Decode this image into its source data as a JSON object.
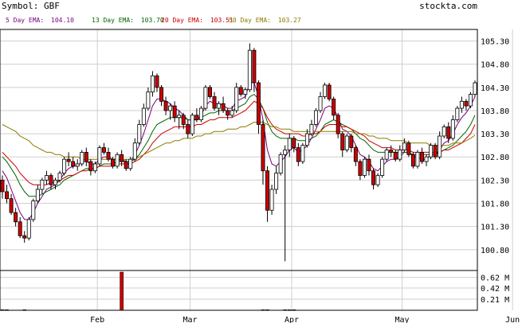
{
  "header": {
    "symbol_label": "Symbol: GBF",
    "site": "stockta.com"
  },
  "legend": [
    {
      "label": "5 Day EMA:",
      "value": "104.10",
      "color": "#7a007a"
    },
    {
      "label": "13 Day EMA:",
      "value": "103.70",
      "color": "#006600"
    },
    {
      "label": "20 Day EMA:",
      "value": "103.51",
      "color": "#cc0000"
    },
    {
      "label": "50 Day EMA:",
      "value": "103.27",
      "color": "#8b7d00"
    }
  ],
  "colors": {
    "up": "#ffffff",
    "down": "#cc0000",
    "grid": "#cfcfcf",
    "frame": "#000000",
    "ema5": "#7a007a",
    "ema13": "#006600",
    "ema20": "#cc0000",
    "ema50": "#8b7d00",
    "volume": "#cc0000"
  },
  "chart_data": {
    "type": "candlestick",
    "title": "",
    "y_axis_ticks": [
      "105.30",
      "104.80",
      "104.30",
      "103.80",
      "103.30",
      "102.80",
      "102.30",
      "101.80",
      "101.30",
      "100.80"
    ],
    "ylim": [
      100.35,
      105.55
    ],
    "x_axis_labels": [
      "Feb",
      "Mar",
      "Apr",
      "May",
      "Jun"
    ],
    "month_start_index": [
      22,
      43,
      66,
      91,
      116
    ],
    "ohlc": [
      [
        102.3,
        102.4,
        101.9,
        102.05
      ],
      [
        102.05,
        102.2,
        101.8,
        101.9
      ],
      [
        101.9,
        102.0,
        101.55,
        101.6
      ],
      [
        101.6,
        101.7,
        101.3,
        101.4
      ],
      [
        101.4,
        101.5,
        101.05,
        101.1
      ],
      [
        101.1,
        101.2,
        100.95,
        101.05
      ],
      [
        101.05,
        101.5,
        101.0,
        101.45
      ],
      [
        101.45,
        101.9,
        101.4,
        101.85
      ],
      [
        101.85,
        102.2,
        101.8,
        102.1
      ],
      [
        102.1,
        102.35,
        102.0,
        102.3
      ],
      [
        102.3,
        102.5,
        102.2,
        102.4
      ],
      [
        102.4,
        102.45,
        102.1,
        102.2
      ],
      [
        102.2,
        102.35,
        102.1,
        102.3
      ],
      [
        102.3,
        102.5,
        102.25,
        102.45
      ],
      [
        102.45,
        102.8,
        102.4,
        102.75
      ],
      [
        102.75,
        102.9,
        102.6,
        102.7
      ],
      [
        102.7,
        102.8,
        102.55,
        102.6
      ],
      [
        102.6,
        102.75,
        102.5,
        102.65
      ],
      [
        102.65,
        102.95,
        102.6,
        102.9
      ],
      [
        102.9,
        103.0,
        102.6,
        102.7
      ],
      [
        102.7,
        102.75,
        102.4,
        102.5
      ],
      [
        102.5,
        102.7,
        102.45,
        102.65
      ],
      [
        102.65,
        103.05,
        102.6,
        103.0
      ],
      [
        103.0,
        103.1,
        102.85,
        102.9
      ],
      [
        102.9,
        103.0,
        102.7,
        102.75
      ],
      [
        102.75,
        102.8,
        102.55,
        102.6
      ],
      [
        102.6,
        102.9,
        102.55,
        102.85
      ],
      [
        102.85,
        102.95,
        102.6,
        102.7
      ],
      [
        102.7,
        102.75,
        102.5,
        102.55
      ],
      [
        102.55,
        102.8,
        102.5,
        102.75
      ],
      [
        102.75,
        103.2,
        102.7,
        103.1
      ],
      [
        103.1,
        103.6,
        103.05,
        103.5
      ],
      [
        103.5,
        103.95,
        103.45,
        103.85
      ],
      [
        103.85,
        104.3,
        103.8,
        104.2
      ],
      [
        104.2,
        104.65,
        104.1,
        104.55
      ],
      [
        104.55,
        104.6,
        104.2,
        104.3
      ],
      [
        104.3,
        104.35,
        103.9,
        104.0
      ],
      [
        104.0,
        104.1,
        103.7,
        103.8
      ],
      [
        103.8,
        103.95,
        103.6,
        103.9
      ],
      [
        103.9,
        104.0,
        103.55,
        103.65
      ],
      [
        103.65,
        103.8,
        103.4,
        103.7
      ],
      [
        103.7,
        103.75,
        103.4,
        103.5
      ],
      [
        103.5,
        103.6,
        103.2,
        103.3
      ],
      [
        103.3,
        103.75,
        103.25,
        103.7
      ],
      [
        103.7,
        103.85,
        103.55,
        103.6
      ],
      [
        103.6,
        103.9,
        103.55,
        103.85
      ],
      [
        103.85,
        104.35,
        103.8,
        104.3
      ],
      [
        104.3,
        104.35,
        104.05,
        104.1
      ],
      [
        104.1,
        104.2,
        103.8,
        103.85
      ],
      [
        103.85,
        104.0,
        103.7,
        103.95
      ],
      [
        103.95,
        104.1,
        103.75,
        103.8
      ],
      [
        103.8,
        103.85,
        103.6,
        103.7
      ],
      [
        103.7,
        103.9,
        103.65,
        103.8
      ],
      [
        103.8,
        104.4,
        103.75,
        104.3
      ],
      [
        104.3,
        104.35,
        104.1,
        104.15
      ],
      [
        104.15,
        104.3,
        104.05,
        104.25
      ],
      [
        104.25,
        105.25,
        104.2,
        105.1
      ],
      [
        105.1,
        105.15,
        104.2,
        104.4
      ],
      [
        104.4,
        104.45,
        103.3,
        103.5
      ],
      [
        103.5,
        103.6,
        102.2,
        102.5
      ],
      [
        102.5,
        102.6,
        101.4,
        101.65
      ],
      [
        101.65,
        102.2,
        101.55,
        102.1
      ],
      [
        102.1,
        102.6,
        102.0,
        102.45
      ],
      [
        102.45,
        102.9,
        102.4,
        102.85
      ],
      [
        102.85,
        103.05,
        100.55,
        102.95
      ],
      [
        102.95,
        103.3,
        102.8,
        103.2
      ],
      [
        103.2,
        103.25,
        102.9,
        103.0
      ],
      [
        103.0,
        103.1,
        102.6,
        102.7
      ],
      [
        102.7,
        103.1,
        102.65,
        103.05
      ],
      [
        103.05,
        103.4,
        103.0,
        103.3
      ],
      [
        103.3,
        103.6,
        103.25,
        103.5
      ],
      [
        103.5,
        103.85,
        103.45,
        103.8
      ],
      [
        103.8,
        104.2,
        103.75,
        104.1
      ],
      [
        104.1,
        104.4,
        104.05,
        104.35
      ],
      [
        104.35,
        104.4,
        104.0,
        104.05
      ],
      [
        104.05,
        104.1,
        103.6,
        103.7
      ],
      [
        103.7,
        103.75,
        103.2,
        103.3
      ],
      [
        103.3,
        103.35,
        102.8,
        102.95
      ],
      [
        102.95,
        103.3,
        102.9,
        103.25
      ],
      [
        103.25,
        103.3,
        102.9,
        103.0
      ],
      [
        103.0,
        103.05,
        102.6,
        102.7
      ],
      [
        102.7,
        102.75,
        102.3,
        102.4
      ],
      [
        102.4,
        102.8,
        102.35,
        102.75
      ],
      [
        102.75,
        102.85,
        102.4,
        102.5
      ],
      [
        102.5,
        102.55,
        102.1,
        102.2
      ],
      [
        102.2,
        102.45,
        102.15,
        102.4
      ],
      [
        102.4,
        102.8,
        102.35,
        102.75
      ],
      [
        102.75,
        103.0,
        102.7,
        102.95
      ],
      [
        102.95,
        103.05,
        102.8,
        102.9
      ],
      [
        102.9,
        102.95,
        102.7,
        102.75
      ],
      [
        102.75,
        103.05,
        102.7,
        102.95
      ],
      [
        102.95,
        103.2,
        102.9,
        103.1
      ],
      [
        103.1,
        103.15,
        102.8,
        102.85
      ],
      [
        102.85,
        102.9,
        102.55,
        102.6
      ],
      [
        102.6,
        102.95,
        102.55,
        102.9
      ],
      [
        102.9,
        103.0,
        102.65,
        102.7
      ],
      [
        102.7,
        102.85,
        102.6,
        102.8
      ],
      [
        102.8,
        103.1,
        102.75,
        103.05
      ],
      [
        103.05,
        103.1,
        102.75,
        102.8
      ],
      [
        102.8,
        103.35,
        102.75,
        103.25
      ],
      [
        103.25,
        103.5,
        103.2,
        103.45
      ],
      [
        103.45,
        103.55,
        103.1,
        103.2
      ],
      [
        103.2,
        103.7,
        103.15,
        103.6
      ],
      [
        103.6,
        103.9,
        103.55,
        103.85
      ],
      [
        103.85,
        104.1,
        103.75,
        104.0
      ],
      [
        104.0,
        104.05,
        103.8,
        103.9
      ],
      [
        103.9,
        104.2,
        103.85,
        104.15
      ],
      [
        104.15,
        104.45,
        104.1,
        104.4
      ]
    ],
    "ema": {
      "5 Day EMA": [
        102.5,
        102.35,
        102.1,
        101.85,
        101.6,
        101.45,
        101.45,
        101.6,
        101.8,
        101.95,
        102.1,
        102.15,
        102.2,
        102.3,
        102.45,
        102.55,
        102.6,
        102.6,
        102.7,
        102.7,
        102.65,
        102.65,
        102.75,
        102.8,
        102.8,
        102.75,
        102.75,
        102.75,
        102.7,
        102.7,
        102.85,
        103.05,
        103.3,
        103.6,
        103.9,
        104.05,
        104.05,
        104.0,
        103.95,
        103.85,
        103.8,
        103.7,
        103.6,
        103.6,
        103.6,
        103.7,
        103.9,
        104.0,
        103.95,
        103.95,
        103.9,
        103.85,
        103.85,
        104.0,
        104.05,
        104.1,
        104.4,
        104.4,
        104.1,
        103.6,
        102.95,
        102.65,
        102.6,
        102.7,
        102.8,
        102.95,
        103.0,
        102.9,
        102.95,
        103.05,
        103.2,
        103.4,
        103.6,
        103.85,
        103.9,
        103.85,
        103.65,
        103.4,
        103.35,
        103.25,
        103.05,
        102.85,
        102.8,
        102.7,
        102.55,
        102.5,
        102.6,
        102.7,
        102.75,
        102.75,
        102.8,
        102.9,
        102.9,
        102.8,
        102.8,
        102.75,
        102.75,
        102.85,
        102.85,
        102.95,
        103.1,
        103.15,
        103.3,
        103.5,
        103.65,
        103.75,
        103.9,
        104.1
      ],
      "13 Day EMA": [
        102.8,
        102.7,
        102.55,
        102.4,
        102.2,
        102.05,
        101.95,
        101.95,
        101.95,
        102.0,
        102.05,
        102.1,
        102.15,
        102.2,
        102.3,
        102.35,
        102.4,
        102.45,
        102.5,
        102.55,
        102.55,
        102.55,
        102.6,
        102.65,
        102.65,
        102.65,
        102.7,
        102.7,
        102.7,
        102.7,
        102.75,
        102.85,
        103.0,
        103.15,
        103.35,
        103.5,
        103.55,
        103.6,
        103.65,
        103.65,
        103.65,
        103.65,
        103.6,
        103.6,
        103.6,
        103.65,
        103.7,
        103.75,
        103.75,
        103.8,
        103.8,
        103.8,
        103.8,
        103.85,
        103.9,
        103.95,
        104.1,
        104.15,
        104.05,
        103.85,
        103.55,
        103.35,
        103.25,
        103.2,
        103.2,
        103.2,
        103.2,
        103.15,
        103.15,
        103.15,
        103.2,
        103.25,
        103.35,
        103.5,
        103.55,
        103.6,
        103.55,
        103.5,
        103.45,
        103.4,
        103.3,
        103.2,
        103.15,
        103.05,
        102.95,
        102.9,
        102.9,
        102.9,
        102.9,
        102.9,
        102.9,
        102.9,
        102.9,
        102.85,
        102.85,
        102.85,
        102.85,
        102.85,
        102.85,
        102.9,
        102.95,
        103.0,
        103.05,
        103.15,
        103.25,
        103.35,
        103.5,
        103.7
      ],
      "20 Day EMA": [
        102.9,
        102.8,
        102.7,
        102.6,
        102.45,
        102.35,
        102.25,
        102.2,
        102.2,
        102.2,
        102.2,
        102.25,
        102.25,
        102.3,
        102.35,
        102.4,
        102.4,
        102.45,
        102.5,
        102.5,
        102.55,
        102.55,
        102.6,
        102.6,
        102.6,
        102.6,
        102.65,
        102.65,
        102.65,
        102.65,
        102.7,
        102.75,
        102.85,
        102.95,
        103.1,
        103.2,
        103.3,
        103.35,
        103.4,
        103.45,
        103.45,
        103.45,
        103.45,
        103.45,
        103.5,
        103.5,
        103.55,
        103.6,
        103.6,
        103.65,
        103.65,
        103.65,
        103.65,
        103.7,
        103.75,
        103.8,
        103.9,
        104.0,
        103.95,
        103.85,
        103.65,
        103.5,
        103.4,
        103.35,
        103.3,
        103.3,
        103.3,
        103.3,
        103.25,
        103.25,
        103.3,
        103.3,
        103.35,
        103.45,
        103.5,
        103.5,
        103.5,
        103.45,
        103.45,
        103.4,
        103.35,
        103.3,
        103.25,
        103.15,
        103.1,
        103.05,
        103.0,
        103.0,
        103.0,
        102.95,
        102.95,
        102.95,
        102.95,
        102.9,
        102.9,
        102.9,
        102.9,
        102.9,
        102.9,
        102.9,
        102.95,
        102.95,
        103.0,
        103.05,
        103.1,
        103.2,
        103.3,
        103.5
      ],
      "50 Day EMA": [
        103.5,
        103.45,
        103.4,
        103.35,
        103.25,
        103.2,
        103.15,
        103.05,
        103.0,
        102.95,
        102.9,
        102.9,
        102.85,
        102.85,
        102.8,
        102.8,
        102.8,
        102.8,
        102.75,
        102.75,
        102.75,
        102.75,
        102.75,
        102.75,
        102.75,
        102.75,
        102.75,
        102.75,
        102.75,
        102.75,
        102.75,
        102.8,
        102.85,
        102.9,
        102.95,
        103.0,
        103.05,
        103.1,
        103.1,
        103.15,
        103.15,
        103.2,
        103.2,
        103.2,
        103.25,
        103.25,
        103.3,
        103.3,
        103.35,
        103.35,
        103.35,
        103.4,
        103.4,
        103.4,
        103.45,
        103.45,
        103.5,
        103.55,
        103.55,
        103.55,
        103.5,
        103.45,
        103.45,
        103.4,
        103.4,
        103.4,
        103.35,
        103.35,
        103.35,
        103.35,
        103.35,
        103.35,
        103.35,
        103.35,
        103.35,
        103.35,
        103.35,
        103.35,
        103.35,
        103.35,
        103.3,
        103.3,
        103.3,
        103.25,
        103.25,
        103.2,
        103.2,
        103.2,
        103.15,
        103.15,
        103.15,
        103.15,
        103.1,
        103.1,
        103.1,
        103.1,
        103.1,
        103.05,
        103.05,
        103.05,
        103.05,
        103.05,
        103.1,
        103.1,
        103.1,
        103.15,
        103.2,
        103.27
      ]
    },
    "volume_axis_ticks": [
      "0.62 M",
      "0.42 M",
      "0.21 M"
    ],
    "volume_max": 0.75,
    "volume": [
      0.01,
      0.01,
      0,
      0,
      0,
      0.01,
      0,
      0,
      0,
      0,
      0,
      0,
      0,
      0,
      0,
      0,
      0,
      0,
      0,
      0,
      0,
      0,
      0,
      0,
      0,
      0,
      0,
      0.72,
      0,
      0,
      0,
      0,
      0,
      0,
      0,
      0,
      0,
      0,
      0,
      0,
      0,
      0,
      0,
      0,
      0,
      0,
      0,
      0,
      0,
      0,
      0,
      0,
      0,
      0,
      0,
      0,
      0,
      0,
      0,
      0.01,
      0.01,
      0,
      0,
      0,
      0.01,
      0.01,
      0.01,
      0,
      0,
      0,
      0,
      0,
      0,
      0,
      0,
      0,
      0,
      0,
      0,
      0,
      0,
      0,
      0,
      0,
      0,
      0,
      0,
      0,
      0,
      0,
      0,
      0,
      0,
      0,
      0,
      0,
      0,
      0,
      0,
      0,
      0,
      0,
      0,
      0,
      0,
      0,
      0,
      0
    ]
  }
}
